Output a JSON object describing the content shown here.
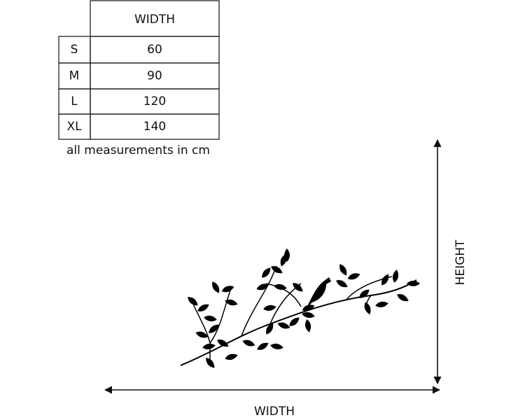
{
  "table": {
    "header": "WIDTH",
    "rows": [
      [
        "S",
        60
      ],
      [
        "M",
        90
      ],
      [
        "L",
        120
      ],
      [
        "XL",
        140
      ]
    ]
  },
  "note": "all measurements in cm",
  "labels": {
    "height": "HEIGHT",
    "width": "WIDTH"
  }
}
